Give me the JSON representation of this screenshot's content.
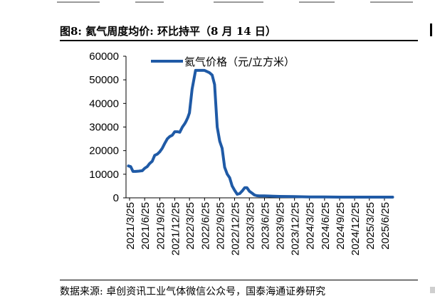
{
  "figure": {
    "title": "图8:  氦气周度均价:  环比持平（8 月 14 日）",
    "source": "数据来源:  卓创资讯工业气体微信公众号，国泰海通证券研究"
  },
  "colors": {
    "series": "#1f5aa6",
    "axis": "#000000"
  },
  "chart_data": {
    "type": "line",
    "title": "",
    "xlabel": "",
    "ylabel": "",
    "ylim": [
      0,
      60000
    ],
    "yticks": [
      0,
      10000,
      20000,
      30000,
      40000,
      50000,
      60000
    ],
    "grid": false,
    "legend_position": "top",
    "x_tick_labels": [
      "2021/3/25",
      "2021/6/25",
      "2021/9/25",
      "2021/12/25",
      "2022/3/25",
      "2022/6/25",
      "2022/9/25",
      "2022/12/25",
      "2023/3/25",
      "2023/6/25",
      "2023/9/25",
      "2023/12/25",
      "2024/3/25",
      "2024/6/25",
      "2024/9/25",
      "2024/12/25",
      "2025/3/25",
      "2025/6/25"
    ],
    "series": [
      {
        "name": "氦气价格（元/立方米）",
        "x": [
          "2021/3/18",
          "2021/4/1",
          "2021/4/15",
          "2021/5/1",
          "2021/5/20",
          "2021/6/10",
          "2021/6/25",
          "2021/7/10",
          "2021/7/25",
          "2021/8/10",
          "2021/8/25",
          "2021/9/10",
          "2021/9/25",
          "2021/10/10",
          "2021/10/25",
          "2021/11/10",
          "2021/11/25",
          "2021/12/10",
          "2021/12/25",
          "2022/1/10",
          "2022/1/25",
          "2022/2/10",
          "2022/2/25",
          "2022/3/5",
          "2022/3/15",
          "2022/3/25",
          "2022/4/10",
          "2022/5/1",
          "2022/5/20",
          "2022/6/10",
          "2022/6/25",
          "2022/7/10",
          "2022/7/25",
          "2022/8/10",
          "2022/8/25",
          "2022/9/10",
          "2022/9/25",
          "2022/10/10",
          "2022/10/25",
          "2022/11/10",
          "2022/11/25",
          "2022/12/10",
          "2022/12/25",
          "2023/1/10",
          "2023/1/25",
          "2023/2/10",
          "2023/2/25",
          "2023/3/10",
          "2023/3/25",
          "2023/4/10",
          "2023/4/25",
          "2023/5/10",
          "2023/5/25",
          "2023/6/25",
          "2023/9/25",
          "2023/12/25",
          "2024/3/25",
          "2024/6/25",
          "2024/9/25",
          "2024/12/25",
          "2025/3/25",
          "2025/6/25",
          "2025/8/14"
        ],
        "values": [
          13500,
          13200,
          11200,
          11200,
          11300,
          11500,
          12500,
          13200,
          14500,
          15500,
          18000,
          18500,
          19500,
          21000,
          23000,
          25000,
          26000,
          26500,
          28000,
          28000,
          27800,
          30000,
          31500,
          32500,
          34000,
          36000,
          46000,
          54000,
          54000,
          54000,
          54000,
          53500,
          53000,
          52000,
          48000,
          30000,
          24000,
          21000,
          13000,
          10000,
          8500,
          5000,
          3200,
          1500,
          1800,
          3000,
          4300,
          4300,
          2800,
          2000,
          1200,
          900,
          800,
          800,
          600,
          500,
          400,
          350,
          300,
          300,
          300,
          300,
          300
        ]
      }
    ]
  }
}
